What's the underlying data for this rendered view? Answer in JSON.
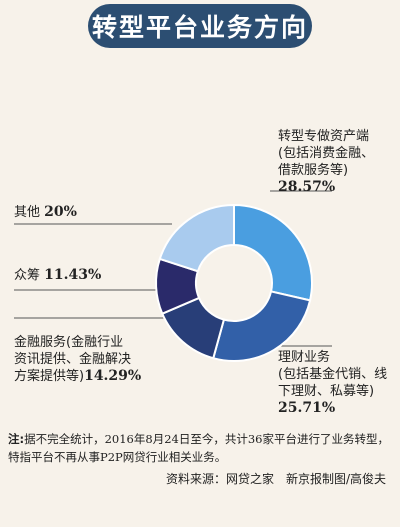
{
  "title": "转型平台业务方向",
  "colors": {
    "banner": "#2c4e72",
    "background": "#f7f2ea",
    "slices": [
      "#4a9ee0",
      "#3260a8",
      "#283e78",
      "#2a2a6a",
      "#a9cbee"
    ]
  },
  "chart_data": {
    "type": "pie",
    "variant": "donut",
    "slices": [
      {
        "label_lines": [
          "转型专做资产端",
          "(包括消费金融、",
          "借款服务等)"
        ],
        "value": 28.57,
        "value_text": "28.57%"
      },
      {
        "label_lines": [
          "理财业务",
          "(包括基金代销、线",
          "下理财、私募等)"
        ],
        "value": 25.71,
        "value_text": "25.71%"
      },
      {
        "label_lines": [
          "金融服务(金融行业",
          "资讯提供、金融解决",
          "方案提供等)"
        ],
        "value": 14.29,
        "value_text": "14.29%"
      },
      {
        "label_lines": [
          "众筹"
        ],
        "value": 11.43,
        "value_text": "11.43%"
      },
      {
        "label_lines": [
          "其他"
        ],
        "value": 20.0,
        "value_text": "20%"
      }
    ]
  },
  "note_label": "注:",
  "note_text": "据不完全统计，2016年8月24日至今，共计36家平台进行了业务转型，特指平台不再从事P2P网贷行业相关业务。",
  "source": "资料来源：网贷之家　新京报制图/高俊夫"
}
